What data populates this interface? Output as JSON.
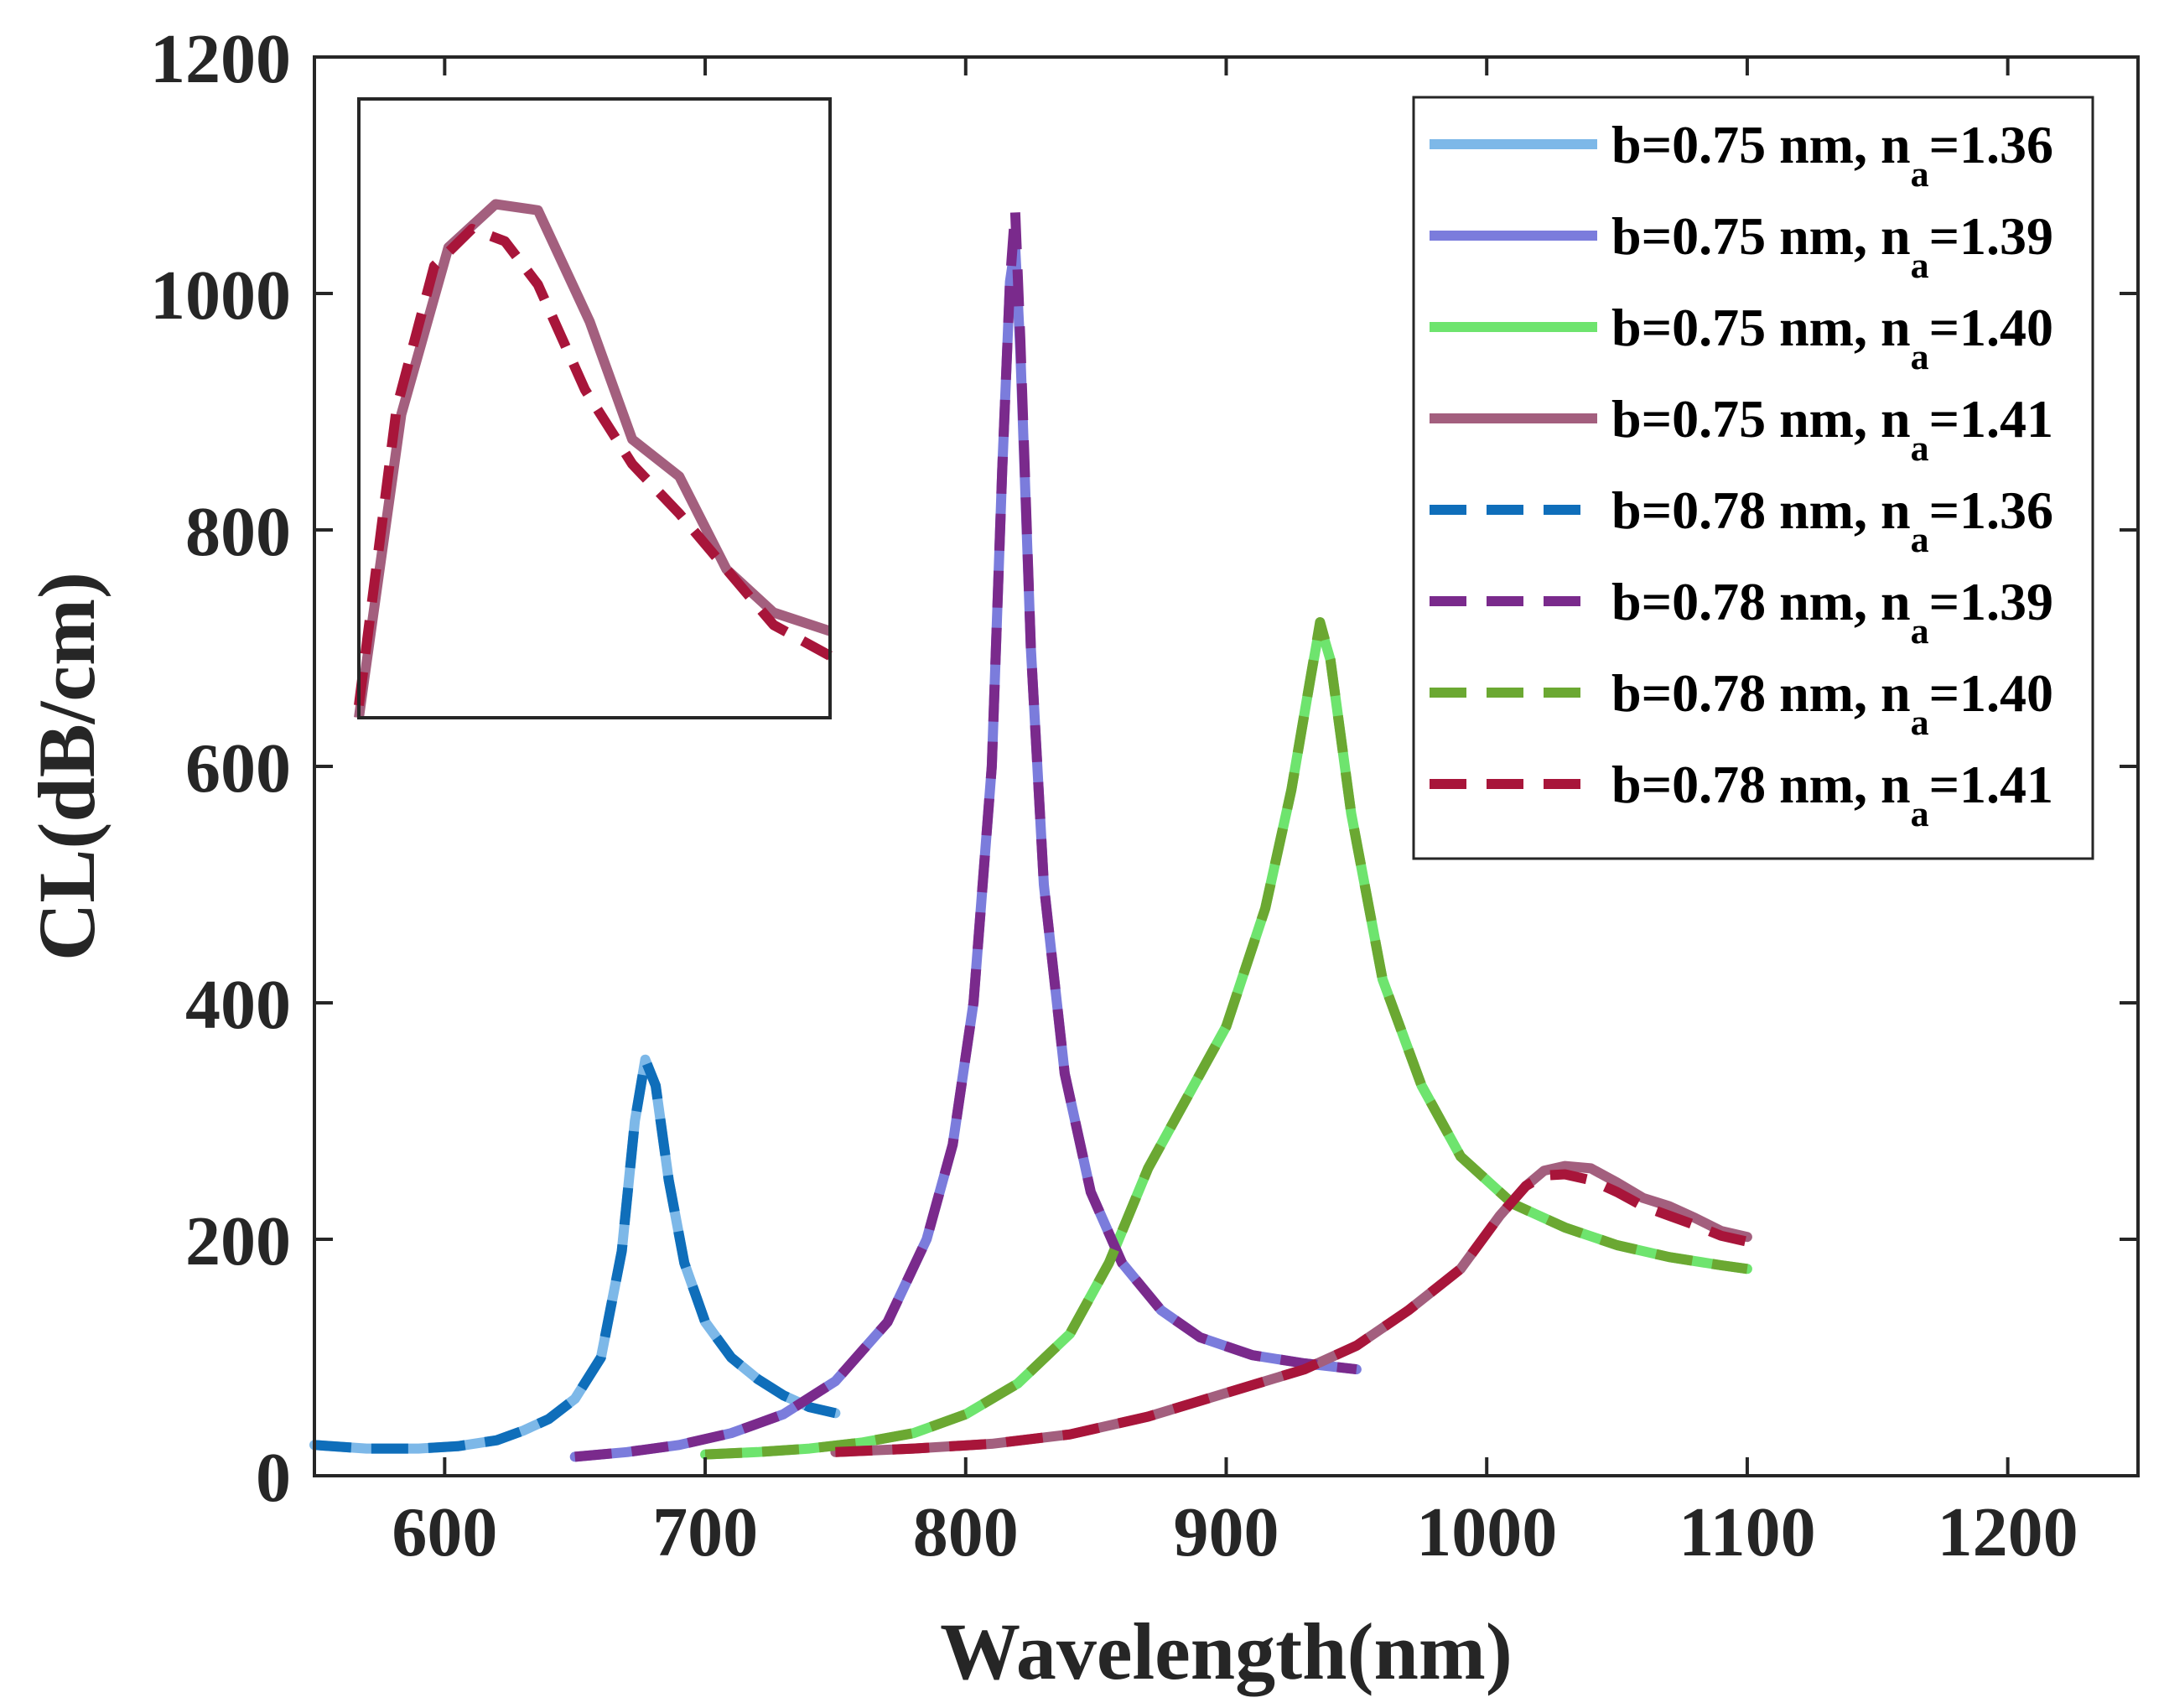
{
  "chart_data": {
    "type": "line",
    "xlabel": "Wavelength(nm)",
    "ylabel": "CL(dB/cm)",
    "xlim": [
      550,
      1250
    ],
    "ylim": [
      0,
      1200
    ],
    "xticks": [
      600,
      700,
      800,
      900,
      1000,
      1100,
      1200
    ],
    "yticks": [
      0,
      200,
      400,
      600,
      800,
      1000,
      1200
    ],
    "grid": false,
    "legend_position": "top-right",
    "series": [
      {
        "name": "b=0.75 nm, n",
        "name_sub": "a",
        "name_suffix": "=1.36",
        "style": "solid",
        "color": "#7db8e8",
        "x": [
          550,
          570,
          590,
          605,
          620,
          630,
          640,
          650,
          660,
          668,
          673,
          677,
          681,
          686,
          692,
          700,
          710,
          720,
          730,
          740,
          750
        ],
        "y": [
          26,
          23,
          23,
          25,
          30,
          38,
          48,
          65,
          100,
          190,
          300,
          352,
          330,
          250,
          180,
          130,
          100,
          82,
          68,
          58,
          53
        ]
      },
      {
        "name": "b=0.75 nm, n",
        "name_sub": "a",
        "name_suffix": "=1.39",
        "style": "solid",
        "color": "#7b7cdc",
        "x": [
          650,
          670,
          690,
          710,
          730,
          750,
          770,
          785,
          795,
          803,
          810,
          814,
          817,
          819,
          821,
          825,
          830,
          838,
          848,
          860,
          875,
          890,
          910,
          930,
          950
        ],
        "y": [
          16,
          20,
          26,
          36,
          52,
          80,
          130,
          200,
          280,
          400,
          600,
          850,
          1010,
          1040,
          950,
          700,
          500,
          340,
          240,
          180,
          140,
          117,
          102,
          95,
          90
        ]
      },
      {
        "name": "b=0.75 nm, n",
        "name_sub": "a",
        "name_suffix": "=1.40",
        "style": "solid",
        "color": "#6ee46e",
        "x": [
          700,
          720,
          740,
          760,
          780,
          800,
          820,
          840,
          855,
          870,
          885,
          900,
          915,
          925,
          932,
          936,
          940,
          948,
          960,
          975,
          990,
          1010,
          1030,
          1050,
          1070,
          1090,
          1100
        ],
        "y": [
          18,
          20,
          23,
          28,
          36,
          52,
          78,
          120,
          180,
          260,
          320,
          380,
          480,
          580,
          670,
          720,
          690,
          560,
          420,
          330,
          270,
          230,
          210,
          195,
          185,
          178,
          175
        ]
      },
      {
        "name": "b=0.75 nm, n",
        "name_sub": "a",
        "name_suffix": "=1.41",
        "style": "solid",
        "color": "#a35f7e",
        "x": [
          750,
          780,
          810,
          840,
          870,
          900,
          930,
          950,
          970,
          990,
          1005,
          1015,
          1022,
          1030,
          1040,
          1050,
          1060,
          1070,
          1080,
          1090,
          1100
        ],
        "y": [
          20,
          23,
          27,
          35,
          50,
          70,
          90,
          110,
          140,
          175,
          220,
          245,
          258,
          262,
          260,
          248,
          235,
          228,
          218,
          207,
          202
        ]
      },
      {
        "name": "b=0.78 nm, n",
        "name_sub": "a",
        "name_suffix": "=1.36",
        "style": "dashed",
        "color": "#0f6eba",
        "x": [
          550,
          570,
          590,
          605,
          620,
          630,
          640,
          650,
          660,
          668,
          673,
          677,
          681,
          686,
          692,
          700,
          710,
          720,
          730,
          740,
          750
        ],
        "y": [
          26,
          23,
          23,
          25,
          30,
          38,
          48,
          65,
          100,
          190,
          300,
          352,
          330,
          250,
          180,
          130,
          100,
          82,
          68,
          58,
          53
        ]
      },
      {
        "name": "b=0.78 nm, n",
        "name_sub": "a",
        "name_suffix": "=1.39",
        "style": "dashed",
        "color": "#7a2a8c",
        "x": [
          650,
          670,
          690,
          710,
          730,
          750,
          770,
          785,
          795,
          803,
          810,
          814,
          817,
          819,
          821,
          825,
          830,
          838,
          848,
          860,
          875,
          890,
          910,
          930,
          950
        ],
        "y": [
          16,
          20,
          26,
          36,
          52,
          80,
          130,
          200,
          280,
          400,
          600,
          850,
          1010,
          1070,
          960,
          700,
          500,
          340,
          240,
          180,
          140,
          117,
          102,
          95,
          90
        ]
      },
      {
        "name": "b=0.78 nm, n",
        "name_sub": "a",
        "name_suffix": "=1.40",
        "style": "dashed",
        "color": "#6ba832",
        "x": [
          700,
          720,
          740,
          760,
          780,
          800,
          820,
          840,
          855,
          870,
          885,
          900,
          915,
          925,
          932,
          936,
          940,
          948,
          960,
          975,
          990,
          1010,
          1030,
          1050,
          1070,
          1090,
          1100
        ],
        "y": [
          18,
          20,
          23,
          28,
          36,
          52,
          78,
          120,
          180,
          260,
          320,
          380,
          480,
          580,
          670,
          722,
          690,
          560,
          420,
          330,
          270,
          230,
          210,
          195,
          185,
          178,
          175
        ]
      },
      {
        "name": "b=0.78 nm, n",
        "name_sub": "a",
        "name_suffix": "=1.41",
        "style": "dashed",
        "color": "#a8153a",
        "x": [
          750,
          780,
          810,
          840,
          870,
          900,
          930,
          950,
          970,
          990,
          1005,
          1015,
          1022,
          1030,
          1040,
          1050,
          1060,
          1070,
          1080,
          1090,
          1100
        ],
        "y": [
          20,
          23,
          27,
          35,
          50,
          70,
          90,
          110,
          140,
          175,
          220,
          245,
          254,
          255,
          250,
          240,
          228,
          220,
          212,
          203,
          198
        ]
      }
    ],
    "inset": {
      "axes_ticks": false,
      "series": [
        {
          "ref": 3,
          "style": "solid",
          "color": "#a35f7e",
          "x": [
            0,
            0.09,
            0.19,
            0.29,
            0.38,
            0.49,
            0.58,
            0.68,
            0.78,
            0.88,
            1
          ],
          "y": [
            0,
            0.49,
            0.76,
            0.83,
            0.82,
            0.64,
            0.45,
            0.39,
            0.24,
            0.17,
            0.14
          ]
        },
        {
          "ref": 7,
          "style": "dashed",
          "color": "#a8153a",
          "x": [
            0,
            0.08,
            0.16,
            0.24,
            0.31,
            0.38,
            0.48,
            0.58,
            0.68,
            0.78,
            0.88,
            1
          ],
          "y": [
            0.02,
            0.5,
            0.73,
            0.79,
            0.77,
            0.7,
            0.53,
            0.41,
            0.33,
            0.24,
            0.15,
            0.1
          ]
        }
      ]
    }
  }
}
